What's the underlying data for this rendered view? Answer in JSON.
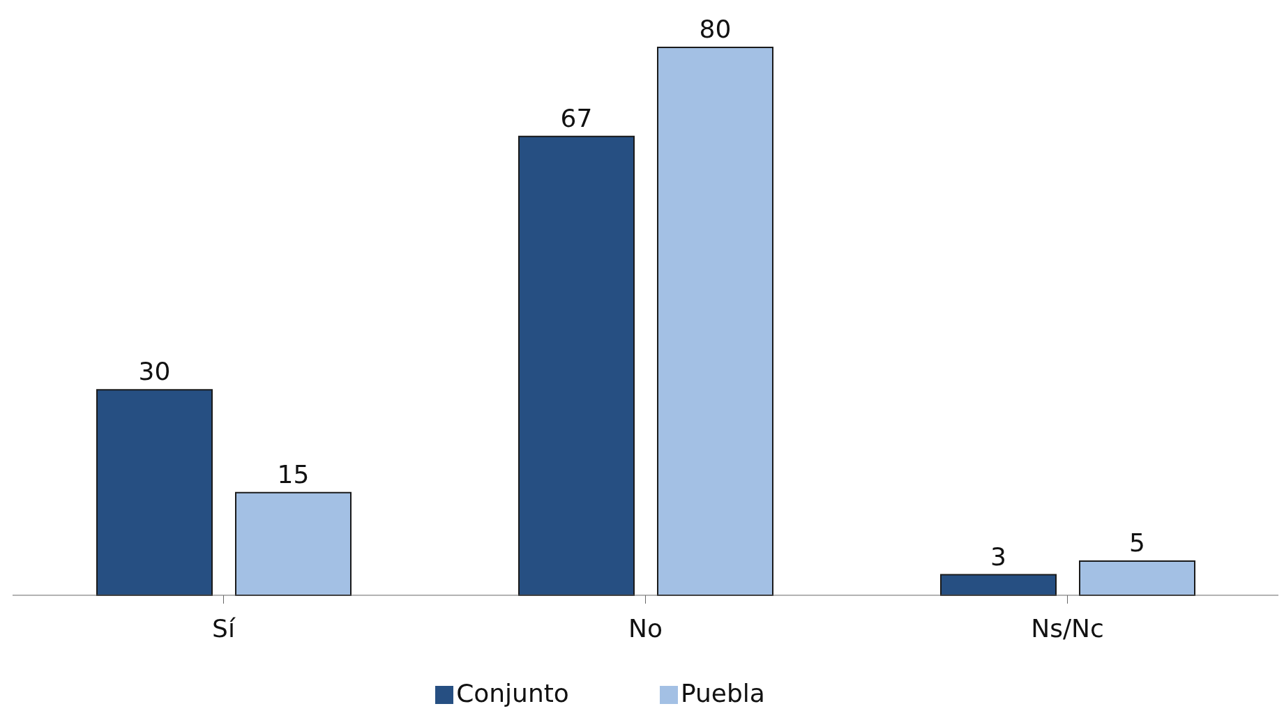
{
  "chart_data": {
    "type": "bar",
    "categories": [
      "Sí",
      "No",
      "Ns/Nc"
    ],
    "series": [
      {
        "name": "Conjunto",
        "color": "#264f82",
        "values": [
          30,
          67,
          3
        ]
      },
      {
        "name": "Puebla",
        "color": "#a3c0e4",
        "values": [
          15,
          80,
          5
        ]
      }
    ],
    "data_labels": true,
    "legend": "bottom",
    "grid": false
  }
}
